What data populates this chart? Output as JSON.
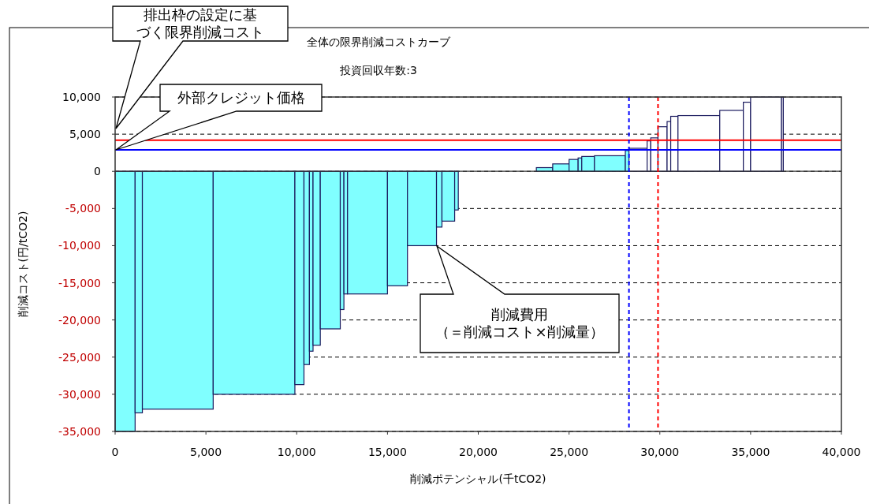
{
  "chart_data": {
    "type": "histogram",
    "title": "全体の限界削減コストカーブ",
    "subtitle": "投資回収年数:3",
    "xlabel": "削減ポテンシャル(千tCO2)",
    "ylabel": "削減コスト(円/tCO2)",
    "bins": [
      0,
      1100,
      1500,
      5400,
      9900,
      10400,
      10700,
      10900,
      11300,
      12400,
      12600,
      12800,
      15000,
      16100,
      17700,
      18000,
      18700,
      18900,
      23200,
      24100,
      25000,
      25500,
      25700,
      26400,
      28100,
      28300,
      29300,
      29500,
      29900,
      30400,
      30600,
      31000,
      33300,
      34600,
      35000,
      36700,
      36800
    ],
    "values": [
      -35000,
      -32500,
      -32000,
      -30000,
      -28700,
      -26000,
      -24200,
      -23400,
      -21200,
      -18600,
      -16500,
      -16500,
      -15400,
      -10000,
      -7500,
      -6700,
      -5200,
      null,
      500,
      1000,
      1600,
      1800,
      2000,
      2100,
      2800,
      3100,
      4100,
      4500,
      6000,
      6700,
      7400,
      7500,
      8200,
      9300,
      10000,
      10000
    ],
    "colors": [
      "#80ffff",
      "#80ffff",
      "#80ffff",
      "#80ffff",
      "#80ffff",
      "#80ffff",
      "#80ffff",
      "#80ffff",
      "#80ffff",
      "#80ffff",
      "#80ffff",
      "#80ffff",
      "#80ffff",
      "#80ffff",
      "#80ffff",
      "#80ffff",
      "#80ffff",
      null,
      "#80ffff",
      "#80ffff",
      "#80ffff",
      "#80ffff",
      "#80ffff",
      "#80ffff",
      "#80ffff",
      "#ffffff",
      "#ffffff",
      "#ffffff",
      "#ffffff",
      "#ffffff",
      "#ffffff",
      "#ffffff",
      "#ffffff",
      "#ffffff",
      "#ffffff",
      "#ffffff"
    ],
    "xlim": [
      0,
      40000
    ],
    "xticks": [
      {
        "value": 0,
        "label": "0"
      },
      {
        "value": 5000,
        "label": "5,000"
      },
      {
        "value": 10000,
        "label": "10,000"
      },
      {
        "value": 15000,
        "label": "15,000"
      },
      {
        "value": 20000,
        "label": "20,000"
      },
      {
        "value": 25000,
        "label": "25,000"
      },
      {
        "value": 30000,
        "label": "30,000"
      },
      {
        "value": 35000,
        "label": "35,000"
      },
      {
        "value": 40000,
        "label": "40,000"
      }
    ],
    "ylim": [
      -35000,
      10000
    ],
    "yticks": [
      {
        "value": 10000,
        "label": "10,000"
      },
      {
        "value": 5000,
        "label": "5,000"
      },
      {
        "value": 0,
        "label": "0"
      },
      {
        "value": -5000,
        "label": "-5,000"
      },
      {
        "value": -10000,
        "label": "-10,000"
      },
      {
        "value": -15000,
        "label": "-15,000"
      },
      {
        "value": -20000,
        "label": "-20,000"
      },
      {
        "value": -25000,
        "label": "-25,000"
      },
      {
        "value": -30000,
        "label": "-30,000"
      },
      {
        "value": -35000,
        "label": "-35,000"
      }
    ],
    "grid": "y",
    "line_style": "dashed",
    "ref_lines": [
      {
        "axis": "y",
        "value": 4200,
        "color": "#ff0000"
      },
      {
        "axis": "y",
        "value": 2900,
        "color": "#0000ff"
      },
      {
        "axis": "x",
        "value": 28300,
        "color": "#0000ff",
        "line_style": "dashed"
      },
      {
        "axis": "x",
        "value": 29900,
        "color": "#ff0000",
        "line_style": "dashed"
      }
    ],
    "annotations": [
      "排出枠の設定に基づく限界削減コスト",
      "外部クレジット価格",
      "削減費用（＝削減コスト×削減量）"
    ]
  }
}
